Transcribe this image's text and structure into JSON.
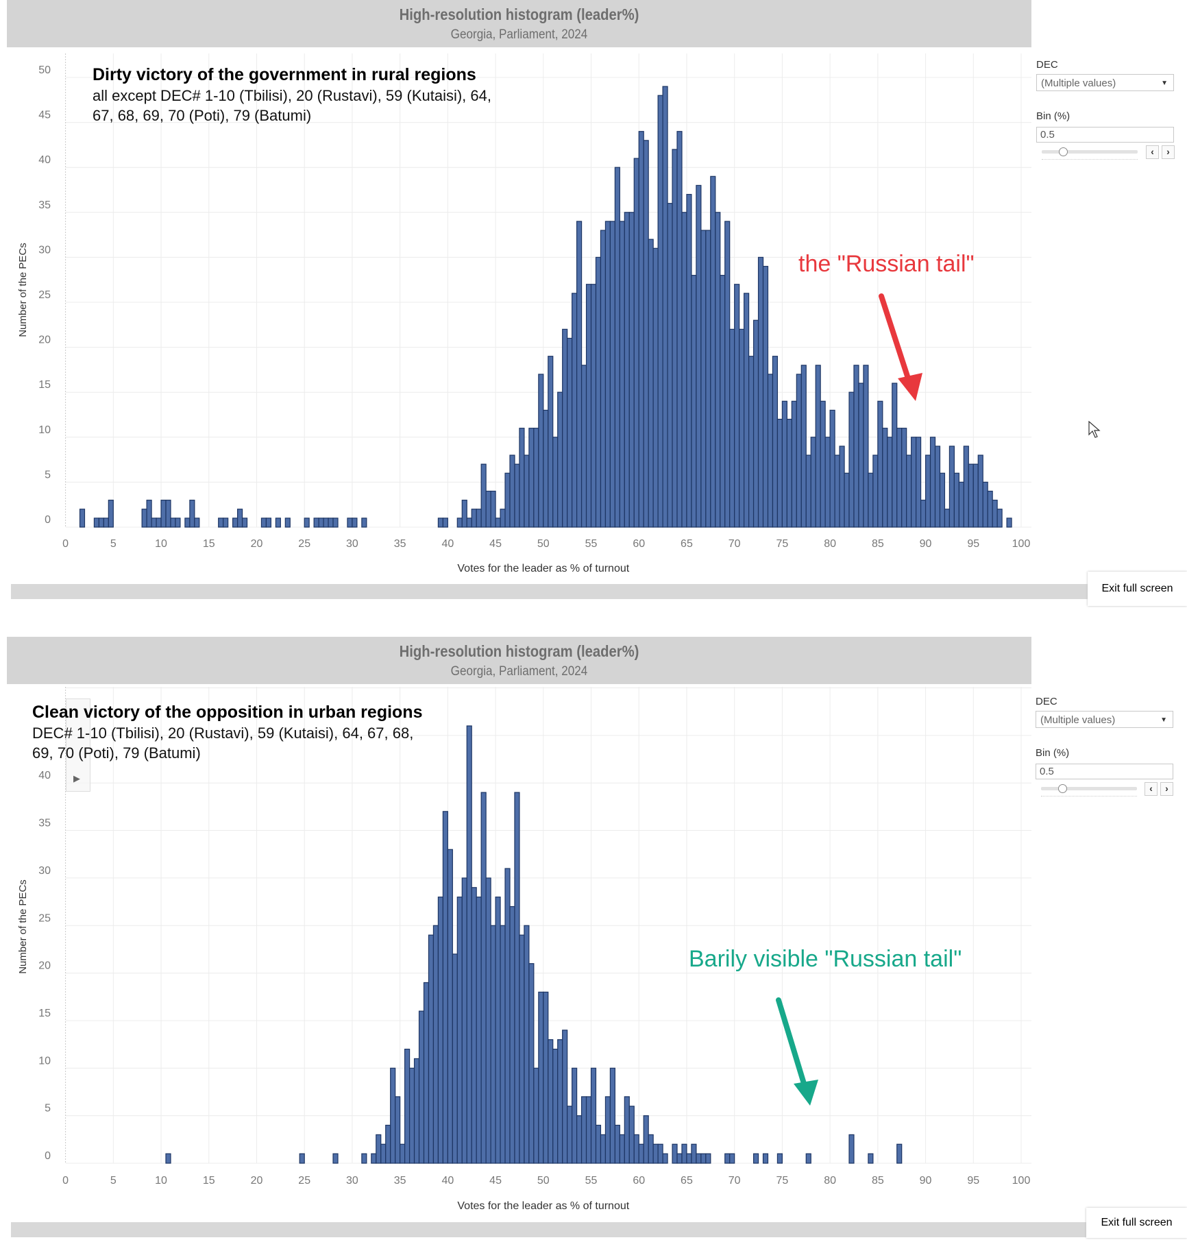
{
  "charts_ui": [
    {
      "header_title": "High-resolution histogram (leader%)",
      "header_subtitle": "Georgia, Parliament, 2024",
      "annotation_title": "Dirty victory of the government in rural regions",
      "annotation_lines": [
        "all except DEC# 1-10 (Tbilisi), 20 (Rustavi), 59 (Kutaisi), 64,",
        "67, 68, 69, 70 (Poti), 79 (Batumi)"
      ],
      "callout": "the \"Russian tail\"",
      "callout_color": "#e8383d",
      "controls": {
        "dec_label": "DEC",
        "dec_value": "(Multiple values)",
        "bin_label": "Bin (%)",
        "bin_value": "0.5",
        "prev_icon": "chevron-left",
        "next_icon": "chevron-right"
      },
      "exit_label": "Exit full screen"
    },
    {
      "header_title": "High-resolution histogram (leader%)",
      "header_subtitle": "Georgia, Parliament, 2024",
      "annotation_title": "Clean victory of the opposition in urban regions",
      "annotation_lines": [
        "DEC# 1-10 (Tbilisi), 20 (Rustavi), 59 (Kutaisi), 64, 67, 68,",
        "69, 70 (Poti), 79 (Batumi)"
      ],
      "callout": "Barily visible \"Russian tail\"",
      "callout_color": "#17a88a",
      "controls": {
        "dec_label": "DEC",
        "dec_value": "(Multiple values)",
        "bin_label": "Bin (%)",
        "bin_value": "0.5",
        "prev_icon": "chevron-left",
        "next_icon": "chevron-right"
      },
      "exit_label": "Exit full screen"
    }
  ],
  "chart_data": [
    {
      "type": "bar",
      "title": "High-resolution histogram (leader%)",
      "subtitle": "Georgia, Parliament, 2024",
      "xlabel": "Votes for the leader as % of turnout",
      "ylabel": "Number of the PECs",
      "xlim": [
        0,
        100
      ],
      "ylim": [
        0,
        50
      ],
      "xticks": [
        0,
        5,
        10,
        15,
        20,
        25,
        30,
        35,
        40,
        45,
        50,
        55,
        60,
        65,
        70,
        75,
        80,
        85,
        90,
        95,
        100
      ],
      "yticks": [
        0,
        5,
        10,
        15,
        20,
        25,
        30,
        35,
        40,
        45,
        50
      ],
      "grid": true,
      "bin_width": 0.5,
      "bar_color": "#4e6ea8",
      "bins": {
        "x": [
          1.5,
          3.0,
          3.5,
          4.0,
          4.5,
          8.0,
          8.5,
          9.0,
          9.5,
          10.0,
          10.5,
          11.0,
          11.5,
          12.5,
          13.0,
          13.5,
          16.0,
          16.5,
          17.5,
          18.0,
          18.5,
          20.5,
          21.0,
          22.0,
          23.0,
          25.0,
          26.0,
          26.5,
          27.0,
          27.5,
          28.0,
          29.5,
          30.0,
          31.0,
          39.0,
          39.5,
          41.0,
          41.5,
          42.0,
          42.5,
          43.0,
          43.5,
          44.0,
          44.5,
          45.0,
          45.5,
          46.0,
          46.5,
          47.0,
          47.5,
          48.0,
          48.5,
          49.0,
          49.5,
          50.0,
          50.5,
          51.0,
          51.5,
          52.0,
          52.5,
          53.0,
          53.5,
          54.0,
          54.5,
          55.0,
          55.5,
          56.0,
          56.5,
          57.0,
          57.5,
          58.0,
          58.5,
          59.0,
          59.5,
          60.0,
          60.5,
          61.0,
          61.5,
          62.0,
          62.5,
          63.0,
          63.5,
          64.0,
          64.5,
          65.0,
          65.5,
          66.0,
          66.5,
          67.0,
          67.5,
          68.0,
          68.5,
          69.0,
          69.5,
          70.0,
          70.5,
          71.0,
          71.5,
          72.0,
          72.5,
          73.0,
          73.5,
          74.0,
          74.5,
          75.0,
          75.5,
          76.0,
          76.5,
          77.0,
          77.5,
          78.0,
          78.5,
          79.0,
          79.5,
          80.0,
          80.5,
          81.0,
          81.5,
          82.0,
          82.5,
          83.0,
          83.5,
          84.0,
          84.5,
          85.0,
          85.5,
          86.0,
          86.5,
          87.0,
          87.5,
          88.0,
          88.5,
          89.0,
          89.5,
          90.0,
          90.5,
          91.0,
          91.5,
          92.0,
          92.5,
          93.0,
          93.5,
          94.0,
          94.5,
          95.0,
          95.5,
          96.0,
          96.5,
          97.0,
          97.5,
          98.5
        ],
        "counts": [
          2,
          1,
          1,
          1,
          3,
          2,
          3,
          1,
          1,
          3,
          3,
          1,
          1,
          1,
          3,
          1,
          1,
          1,
          1,
          2,
          1,
          1,
          1,
          1,
          1,
          1,
          1,
          1,
          1,
          1,
          1,
          1,
          1,
          1,
          1,
          1,
          1,
          3,
          1,
          2,
          2,
          7,
          4,
          4,
          1,
          2,
          6,
          8,
          7,
          11,
          8,
          11,
          11,
          17,
          13,
          19,
          10,
          15,
          22,
          21,
          26,
          34,
          18,
          27,
          27,
          30,
          33,
          34,
          34,
          40,
          34,
          35,
          35,
          41,
          44,
          43,
          32,
          31,
          48,
          49,
          36,
          42,
          44,
          35,
          37,
          28,
          38,
          33,
          33,
          39,
          35,
          28,
          34,
          22,
          27,
          22,
          26,
          19,
          23,
          30,
          29,
          17,
          19,
          12,
          14,
          12,
          14,
          17,
          18,
          8,
          10,
          18,
          14,
          10,
          13,
          8,
          9,
          6,
          15,
          18,
          16,
          18,
          6,
          8,
          14,
          11,
          10,
          16,
          11,
          11,
          8,
          10,
          10,
          3,
          8,
          10,
          9,
          6,
          2,
          9,
          6,
          5,
          9,
          7,
          7,
          8,
          5,
          4,
          3,
          2,
          1
        ]
      }
    },
    {
      "type": "bar",
      "title": "High-resolution histogram (leader%)",
      "subtitle": "Georgia, Parliament, 2024",
      "xlabel": "Votes for the leader as % of turnout",
      "ylabel": "Number of the PECs",
      "xlim": [
        0,
        100
      ],
      "ylim": [
        0,
        50
      ],
      "xticks": [
        0,
        5,
        10,
        15,
        20,
        25,
        30,
        35,
        40,
        45,
        50,
        55,
        60,
        65,
        70,
        75,
        80,
        85,
        90,
        95,
        100
      ],
      "yticks": [
        0,
        5,
        10,
        15,
        20,
        25,
        30,
        35,
        40
      ],
      "grid": true,
      "bin_width": 0.5,
      "bar_color": "#4e6ea8",
      "bins": {
        "x": [
          10.5,
          24.5,
          28.0,
          31.0,
          32.0,
          32.5,
          33.0,
          33.5,
          34.0,
          34.5,
          35.0,
          35.5,
          36.0,
          36.5,
          37.0,
          37.5,
          38.0,
          38.5,
          39.0,
          39.5,
          40.0,
          40.5,
          41.0,
          41.5,
          42.0,
          42.5,
          43.0,
          43.5,
          44.0,
          44.5,
          45.0,
          45.5,
          46.0,
          46.5,
          47.0,
          47.5,
          48.0,
          48.5,
          49.0,
          49.5,
          50.0,
          50.5,
          51.0,
          51.5,
          52.0,
          52.5,
          53.0,
          53.5,
          54.0,
          54.5,
          55.0,
          55.5,
          56.0,
          56.5,
          57.0,
          57.5,
          58.0,
          58.5,
          59.0,
          59.5,
          60.0,
          60.5,
          61.0,
          61.5,
          62.0,
          62.5,
          63.5,
          64.0,
          64.5,
          65.0,
          65.5,
          66.0,
          66.5,
          67.0,
          69.0,
          69.5,
          72.0,
          73.0,
          74.5,
          77.5,
          82.0,
          84.0,
          87.0
        ],
        "counts": [
          1,
          1,
          1,
          1,
          1,
          3,
          2,
          4,
          10,
          7,
          2,
          12,
          10,
          11,
          16,
          19,
          24,
          25,
          28,
          37,
          33,
          22,
          28,
          30,
          46,
          29,
          28,
          39,
          30,
          25,
          28,
          25,
          31,
          27,
          39,
          24,
          25,
          21,
          10,
          18,
          18,
          13,
          12,
          13,
          14,
          6,
          10,
          5,
          7,
          7,
          10,
          4,
          3,
          7,
          10,
          4,
          3,
          7,
          6,
          3,
          2,
          5,
          3,
          2,
          2,
          1,
          2,
          1,
          2,
          1,
          2,
          1,
          1,
          1,
          1,
          1,
          1,
          1,
          1,
          1,
          3,
          1,
          2
        ]
      }
    }
  ]
}
